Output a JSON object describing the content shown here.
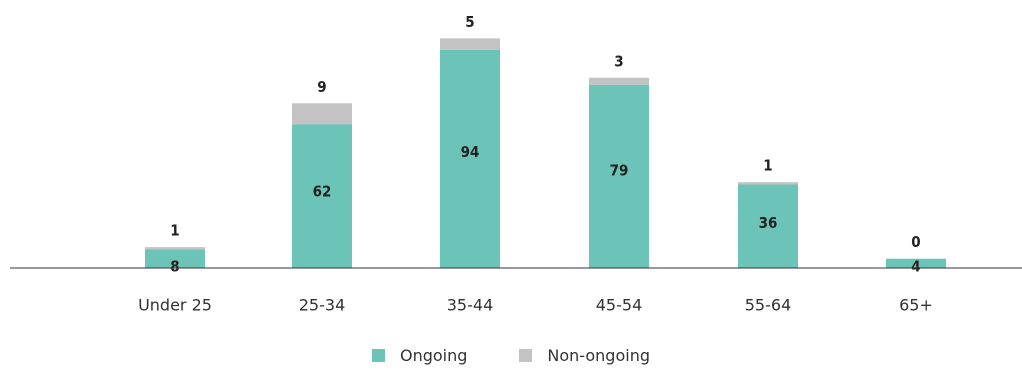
{
  "chart_data": {
    "type": "bar",
    "stacked": true,
    "categories": [
      "Under 25",
      "25-34",
      "35-44",
      "45-54",
      "55-64",
      "65+"
    ],
    "series": [
      {
        "name": "Ongoing",
        "values": [
          8,
          62,
          94,
          79,
          36,
          4
        ],
        "color": "#6cc3b8"
      },
      {
        "name": "Non-ongoing",
        "values": [
          1,
          9,
          5,
          3,
          1,
          0
        ],
        "color": "#c3c3c3"
      }
    ],
    "title": "",
    "xlabel": "",
    "ylabel": "",
    "ylim": [
      0,
      100
    ],
    "grid": false,
    "legend_position": "bottom-center",
    "axis_color": "#333333",
    "text_color": "#222222"
  }
}
